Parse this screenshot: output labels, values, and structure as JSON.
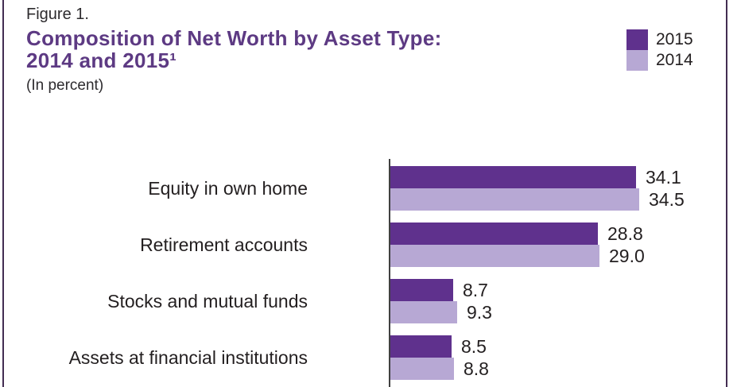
{
  "header": {
    "figure_label": "Figure 1.",
    "title_line1": "Composition of Net Worth by Asset Type:",
    "title_line2": "2014 and 2015¹",
    "subtitle": "(In percent)"
  },
  "legend": {
    "items": [
      {
        "label": "2015",
        "color": "#5f318d"
      },
      {
        "label": "2014",
        "color": "#b7a8d4"
      }
    ]
  },
  "chart_data": {
    "type": "bar",
    "orientation": "horizontal",
    "title": "Composition of Net Worth by Asset Type: 2014 and 2015",
    "units": "percent",
    "categories": [
      "Equity in own home",
      "Retirement accounts",
      "Stocks and mutual funds",
      "Assets at financial institutions"
    ],
    "series": [
      {
        "name": "2015",
        "color": "#5f318d",
        "values": [
          34.1,
          28.8,
          8.7,
          8.5
        ],
        "value_labels": [
          "34.1",
          "28.8",
          "8.7",
          "8.5"
        ]
      },
      {
        "name": "2014",
        "color": "#b7a8d4",
        "values": [
          34.5,
          29.0,
          9.3,
          8.8
        ],
        "value_labels": [
          "34.5",
          "29.0",
          "9.3",
          "8.8"
        ]
      }
    ],
    "xlim": [
      0,
      40
    ],
    "grid": false,
    "legend_position": "top-right",
    "value_labels_shown": true
  },
  "colors": {
    "title_purple": "#5d3a83",
    "bar_2015": "#5f318d",
    "bar_2014": "#b7a8d4",
    "page_border": "#432d52",
    "axis": "#404040",
    "text": "#231f20"
  }
}
